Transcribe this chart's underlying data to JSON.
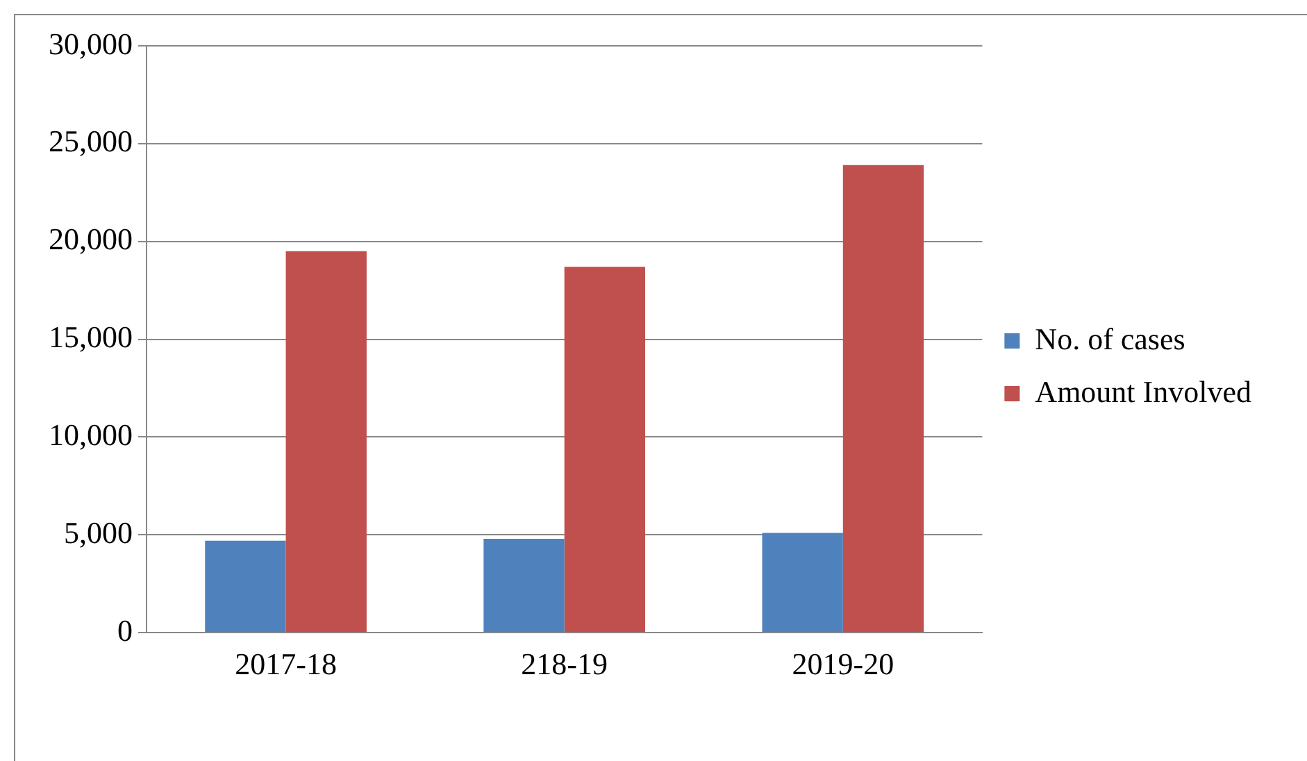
{
  "chart_data": {
    "type": "bar",
    "categories": [
      "2017-18",
      "218-19",
      "2019-20"
    ],
    "series": [
      {
        "name": "No. of cases",
        "color": "#4f81bd",
        "values": [
          4700,
          4800,
          5100
        ]
      },
      {
        "name": "Amount Involved",
        "color": "#c0504d",
        "values": [
          19500,
          18700,
          23900
        ]
      }
    ],
    "ylim": [
      0,
      30000
    ],
    "yticks": [
      {
        "value": 0,
        "label": "0"
      },
      {
        "value": 5000,
        "label": "5,000"
      },
      {
        "value": 10000,
        "label": "10,000"
      },
      {
        "value": 15000,
        "label": "15,000"
      },
      {
        "value": 20000,
        "label": "20,000"
      },
      {
        "value": 25000,
        "label": "25,000"
      },
      {
        "value": 30000,
        "label": "30,000"
      }
    ],
    "grid": "y",
    "legend": "right"
  }
}
